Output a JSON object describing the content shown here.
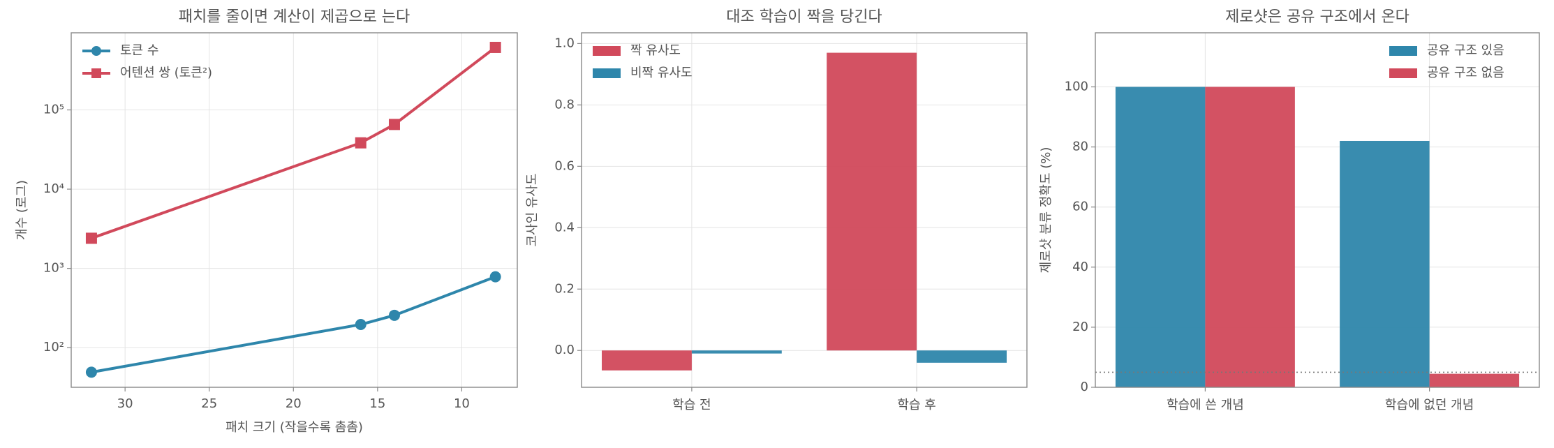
{
  "chart_data": [
    {
      "type": "line",
      "title": "패치를 줄이면 계산이 제곱으로 는다",
      "xlabel": "패치 크기 (작을수록 촘촘)",
      "ylabel": "개수 (로그)",
      "x": [
        32,
        16,
        14,
        8
      ],
      "series": [
        {
          "name": "토큰 수",
          "color": "#2e86ab",
          "marker": "circle",
          "values": [
            49,
            196,
            256,
            784
          ]
        },
        {
          "name": "어텐션 쌍 (토큰²)",
          "color": "#d1495b",
          "marker": "square",
          "values": [
            2401,
            38416,
            65536,
            614656
          ]
        }
      ],
      "xlim": [
        33.2,
        6.7
      ],
      "xticks": [
        30,
        25,
        20,
        15,
        10
      ],
      "ylim": [
        31.6,
        940000
      ],
      "yscale": "log",
      "yticks": [
        {
          "value": 100,
          "label": "10²"
        },
        {
          "value": 1000,
          "label": "10³"
        },
        {
          "value": 10000,
          "label": "10⁴"
        },
        {
          "value": 100000,
          "label": "10⁵"
        }
      ],
      "grid": true,
      "legend": "upper left"
    },
    {
      "type": "bar",
      "title": "대조 학습이 짝을 당긴다",
      "ylabel": "코사인 유사도",
      "categories": [
        "학습 전",
        "학습 후"
      ],
      "series": [
        {
          "name": "짝 유사도",
          "color": "#d1495b",
          "values": [
            -0.065,
            0.97
          ]
        },
        {
          "name": "비짝 유사도",
          "color": "#2e86ab",
          "values": [
            -0.01,
            -0.04
          ]
        }
      ],
      "ylim": [
        -0.12,
        1.035
      ],
      "yticks": [
        {
          "value": 0,
          "label": "0.0"
        },
        0.2,
        0.4,
        0.6,
        0.8,
        {
          "value": 1,
          "label": "1.0"
        }
      ],
      "grid": true,
      "legend": "upper left"
    },
    {
      "type": "bar",
      "title": "제로샷은 공유 구조에서 온다",
      "ylabel": "제로샷 분류 정확도 (%)",
      "categories": [
        "학습에 쓴 개념",
        "학습에 없던 개념"
      ],
      "series": [
        {
          "name": "공유 구조 있음",
          "color": "#2e86ab",
          "values": [
            100,
            82
          ]
        },
        {
          "name": "공유 구조 없음",
          "color": "#d1495b",
          "values": [
            100,
            4.5
          ]
        }
      ],
      "ylim": [
        0,
        118
      ],
      "yticks": [
        0,
        20,
        40,
        60,
        80,
        100
      ],
      "hline": 5,
      "grid": true,
      "legend": "upper right"
    }
  ]
}
